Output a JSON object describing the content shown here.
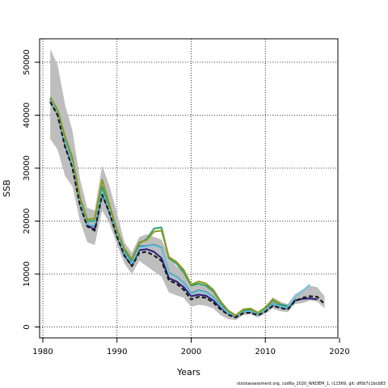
{
  "chart_data": {
    "type": "line",
    "title": "",
    "xlabel": "Years",
    "ylabel": "SSB",
    "xlim": [
      1980,
      2020
    ],
    "ylim": [
      0,
      52000
    ],
    "xticks": [
      1980,
      1990,
      2000,
      2010,
      2020
    ],
    "yticks": [
      0,
      10000,
      20000,
      30000,
      40000,
      50000
    ],
    "grid": true,
    "band": {
      "x": [
        1981,
        1982,
        1983,
        1984,
        1985,
        1986,
        1987,
        1988,
        1989,
        1990,
        1991,
        1992,
        1993,
        1994,
        1995,
        1996,
        1997,
        1998,
        1999,
        2000,
        2001,
        2002,
        2003,
        2004,
        2005,
        2006,
        2007,
        2008,
        2009,
        2010,
        2011,
        2012,
        2013,
        2014,
        2015,
        2016,
        2017,
        2018
      ],
      "upper": [
        52500,
        49500,
        42000,
        37000,
        28000,
        22500,
        22000,
        30500,
        26500,
        21500,
        16000,
        14000,
        17000,
        17500,
        17000,
        16500,
        13500,
        11500,
        10500,
        8000,
        8200,
        8000,
        7000,
        5000,
        3000,
        2300,
        3500,
        3600,
        2800,
        3800,
        5600,
        4800,
        4300,
        6200,
        7000,
        7800,
        7500,
        5800
      ],
      "lower": [
        35500,
        33500,
        28500,
        26500,
        20000,
        16000,
        15500,
        22000,
        19500,
        15500,
        12000,
        10000,
        12500,
        11500,
        10500,
        9500,
        6500,
        6000,
        5500,
        3800,
        4200,
        4000,
        3500,
        2200,
        1500,
        1300,
        2200,
        2400,
        1800,
        2500,
        3500,
        3000,
        2800,
        4300,
        4500,
        5000,
        4800,
        3500
      ]
    },
    "series": [
      {
        "color": "#1a1a1a",
        "dash": true,
        "x": [
          1981,
          1982,
          1983,
          1984,
          1985,
          1986,
          1987,
          1988,
          1989,
          1990,
          1991,
          1992,
          1993,
          1994,
          1995,
          1996,
          1997,
          1998,
          1999,
          2000,
          2001,
          2002,
          2003,
          2004,
          2005,
          2006,
          2007,
          2008,
          2009,
          2010,
          2011,
          2012,
          2013,
          2014,
          2015,
          2016,
          2017,
          2018
        ],
        "values": [
          42500,
          40000,
          34000,
          30000,
          23000,
          19000,
          18200,
          25000,
          21500,
          17000,
          13500,
          11500,
          14000,
          14200,
          13500,
          12500,
          8800,
          8200,
          7000,
          5200,
          5700,
          5500,
          4600,
          3300,
          2300,
          1800,
          2600,
          2700,
          2200,
          2900,
          4000,
          3600,
          3300,
          4900,
          5500,
          5800,
          5700,
          4300
        ]
      },
      {
        "color": "#2b1f7a",
        "dash": false,
        "x": [
          1981,
          1982,
          1983,
          1984,
          1985,
          1986,
          1987,
          1988,
          1989,
          1990,
          1991,
          1992,
          1993,
          1994,
          1995,
          1996,
          1997,
          1998,
          1999,
          2000,
          2001,
          2002,
          2003,
          2004,
          2005,
          2006,
          2007,
          2008,
          2009,
          2010,
          2011,
          2012,
          2013,
          2014,
          2015,
          2016,
          2017
        ],
        "values": [
          42800,
          40200,
          34500,
          30500,
          23200,
          19200,
          18400,
          25200,
          21600,
          17100,
          13600,
          11600,
          14500,
          14700,
          14200,
          13000,
          9200,
          8600,
          7500,
          5800,
          6100,
          5900,
          5000,
          3600,
          2500,
          1900,
          2800,
          2900,
          2300,
          3100,
          4200,
          3800,
          3500,
          5000,
          5300,
          5400,
          5200
        ]
      },
      {
        "color": "#2d6e8e",
        "dash": false,
        "x": [
          1981,
          1982,
          1983,
          1984,
          1985,
          1986,
          1987,
          1988,
          1989,
          1990,
          1991,
          1992,
          1993,
          1994,
          1995,
          1996,
          1997,
          1998,
          1999,
          2000,
          2001,
          2002,
          2003,
          2004,
          2005,
          2006,
          2007,
          2008,
          2009,
          2010,
          2011,
          2012,
          2013,
          2014
        ],
        "values": [
          43000,
          40400,
          35000,
          31000,
          23500,
          19500,
          19000,
          25800,
          22000,
          17500,
          14000,
          12000,
          15200,
          15300,
          15500,
          15000,
          10200,
          9500,
          8300,
          6300,
          6900,
          6600,
          5600,
          4000,
          2700,
          2000,
          2900,
          3100,
          2400,
          3300,
          4400,
          4000,
          3700,
          5500
        ]
      },
      {
        "color": "#2aa36b",
        "dash": false,
        "x": [
          1981,
          1982,
          1983,
          1984,
          1985,
          1986,
          1987,
          1988,
          1989,
          1990,
          1991,
          1992,
          1993,
          1994,
          1995,
          1996,
          1997,
          1998,
          1999,
          2000,
          2001,
          2002,
          2003,
          2004,
          2005,
          2006,
          2007,
          2008,
          2009,
          2010,
          2011,
          2012,
          2013
        ],
        "values": [
          43200,
          40800,
          35500,
          31500,
          24000,
          20000,
          20000,
          26500,
          22500,
          18000,
          14500,
          12500,
          15800,
          16600,
          18600,
          18800,
          13000,
          12000,
          10300,
          7800,
          8200,
          7800,
          6700,
          4600,
          3000,
          2100,
          3200,
          3400,
          2600,
          3600,
          5000,
          4300,
          4000
        ]
      },
      {
        "color": "#6bc5e0",
        "dash": false,
        "x": [
          1981,
          1982,
          1983,
          1984,
          1985,
          1986,
          1987,
          1988,
          1989,
          1990,
          1991,
          1992,
          1993,
          1994,
          1995,
          1996,
          1997,
          1998,
          1999,
          2000,
          2001,
          2002,
          2003,
          2004,
          2005,
          2006,
          2007,
          2008,
          2009,
          2010,
          2011,
          2012,
          2013,
          2014,
          2015,
          2016
        ],
        "values": [
          42900,
          40300,
          34800,
          30800,
          23400,
          19400,
          19200,
          25600,
          21900,
          17400,
          13900,
          11900,
          15000,
          15200,
          15400,
          14900,
          10100,
          9400,
          8200,
          6200,
          6800,
          6500,
          5500,
          3900,
          2600,
          2000,
          2800,
          3000,
          2300,
          3200,
          4300,
          3900,
          3600,
          5600,
          6800,
          8000
        ]
      },
      {
        "color": "#8b9a1e",
        "dash": false,
        "x": [
          1981,
          1982,
          1983,
          1984,
          1985,
          1986,
          1987,
          1988,
          1989,
          1990,
          1991,
          1992,
          1993,
          1994,
          1995,
          1996,
          1997,
          1998,
          1999,
          2000,
          2001,
          2002,
          2003,
          2004,
          2005,
          2006,
          2007,
          2008,
          2009,
          2010,
          2011,
          2012
        ],
        "values": [
          43400,
          41000,
          36000,
          32000,
          24500,
          20300,
          20500,
          27800,
          23000,
          18300,
          14800,
          12800,
          16000,
          16400,
          18000,
          18200,
          13200,
          12300,
          10800,
          8000,
          8600,
          8200,
          7000,
          4800,
          3100,
          2200,
          3300,
          3500,
          2700,
          3700,
          5200,
          4400
        ]
      }
    ]
  },
  "footer": "stockassessment.org, cod6a_2020_WKDEM_1, r11569, git: df0b7c1bcb83"
}
